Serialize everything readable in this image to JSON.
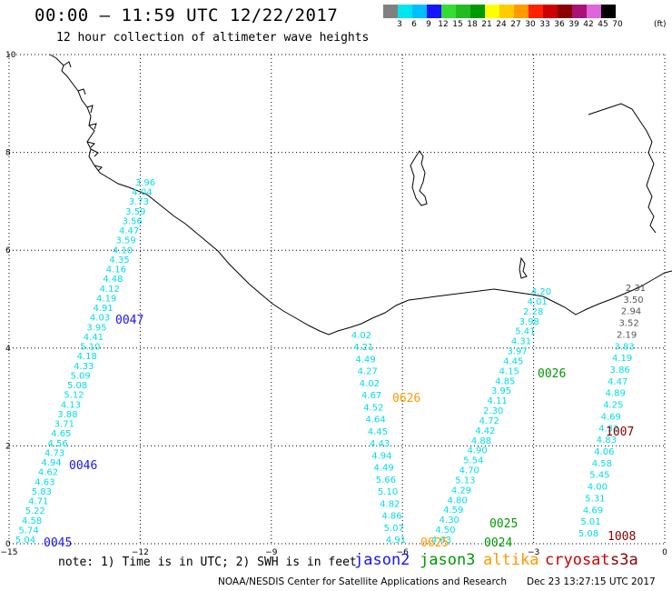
{
  "header": {
    "title": "00:00 — 11:59 UTC 12/22/2017",
    "subtitle": "12 hour collection of altimeter wave heights"
  },
  "colorbar": {
    "unit": "(ft)",
    "items": [
      {
        "label": "3",
        "color": "#808080"
      },
      {
        "label": "6",
        "color": "#00e5ee"
      },
      {
        "label": "9",
        "color": "#00bfff"
      },
      {
        "label": "12",
        "color": "#1515ff"
      },
      {
        "label": "15",
        "color": "#33dd33"
      },
      {
        "label": "18",
        "color": "#22bb22"
      },
      {
        "label": "21",
        "color": "#009900"
      },
      {
        "label": "24",
        "color": "#ffff00"
      },
      {
        "label": "27",
        "color": "#ffcc00"
      },
      {
        "label": "30",
        "color": "#ff9900"
      },
      {
        "label": "33",
        "color": "#ff2200"
      },
      {
        "label": "36",
        "color": "#cc0000"
      },
      {
        "label": "39",
        "color": "#880000"
      },
      {
        "label": "42",
        "color": "#aa1177"
      },
      {
        "label": "45",
        "color": "#dd66dd"
      },
      {
        "label": "70",
        "color": "#000000"
      }
    ]
  },
  "axes": {
    "x_ticks": [
      "−15",
      "−12",
      "−9",
      "−6",
      "−3",
      "0"
    ],
    "y_ticks": [
      "0",
      "2",
      "4",
      "6",
      "8",
      "10"
    ]
  },
  "tracks": [
    {
      "id": "jason2-west",
      "color": "#00dde8",
      "values": [
        "3.96",
        "4.04",
        "3.73",
        "3.59",
        "3.56",
        "4.47",
        "3.59",
        "4.10",
        "4.35",
        "4.16",
        "4.48",
        "4.12",
        "4.19",
        "4.91",
        "4.03",
        "3.95",
        "4.41",
        "5.10",
        "4.18",
        "4.33",
        "5.09",
        "5.08",
        "5.12",
        "4.13",
        "3.88",
        "3.71",
        "4.65",
        "4.56",
        "4.73",
        "4.94",
        "4.62",
        "4.63",
        "5.83",
        "4.71",
        "5.22",
        "4.58",
        "5.74",
        "5.04"
      ]
    },
    {
      "id": "altika",
      "color": "#00dde8",
      "values": [
        "4.02",
        "4.21",
        "4.49",
        "4.27",
        "4.02",
        "4.67",
        "4.52",
        "4.64",
        "4.45",
        "4.43",
        "4.94",
        "4.49",
        "5.66",
        "5.10",
        "4.82",
        "4.86",
        "5.07",
        "4.91"
      ]
    },
    {
      "id": "jason3",
      "color": "#00dde8",
      "values": [
        "4.20",
        "4.01",
        "2.28",
        "3.98",
        "5.41",
        "4.31",
        "3.97",
        "4.45",
        "4.15",
        "4.85",
        "3.95",
        "4.11",
        "2.30",
        "4.72",
        "4.42",
        "4.88",
        "4.90",
        "5.54",
        "4.70",
        "5.13",
        "4.29",
        "4.80",
        "4.59",
        "4.30",
        "4.50",
        "4.63"
      ]
    },
    {
      "id": "cryosat",
      "color": "#00dde8",
      "values": [
        "2.31",
        "3.50",
        "2.94",
        "3.52",
        "2.19",
        "3.83",
        "4.19",
        "3.86",
        "4.47",
        "4.89",
        "4.25",
        "4.69",
        "4.32",
        "4.83",
        "4.06",
        "4.58",
        "5.45",
        "4.00",
        "5.31",
        "4.69",
        "5.01",
        "5.08"
      ]
    }
  ],
  "pass_labels": [
    {
      "text": "0047",
      "color": "#1515ff"
    },
    {
      "text": "0046",
      "color": "#1515ff"
    },
    {
      "text": "0045",
      "color": "#1515ff"
    },
    {
      "text": "0626",
      "color": "#ff9900"
    },
    {
      "text": "0625",
      "color": "#ff9900"
    },
    {
      "text": "0026",
      "color": "#009900"
    },
    {
      "text": "0025",
      "color": "#009900"
    },
    {
      "text": "0024",
      "color": "#009900"
    },
    {
      "text": "1007",
      "color": "#880000"
    },
    {
      "text": "1008",
      "color": "#880000"
    }
  ],
  "footer": {
    "note": "note: 1) Time is in UTC; 2) SWH is in feet",
    "legend": [
      {
        "label": "jason2",
        "color": "#1515ff"
      },
      {
        "label": "jason3",
        "color": "#009900"
      },
      {
        "label": "altika",
        "color": "#ff9900"
      },
      {
        "label": "cryosat",
        "color": "#cc0000"
      },
      {
        "label": "s3a",
        "color": "#880000"
      }
    ],
    "credit": "NOAA/NESDIS Center for Satellite Applications and Research",
    "timestamp": "Dec 23 13:27:15 UTC 2017"
  }
}
